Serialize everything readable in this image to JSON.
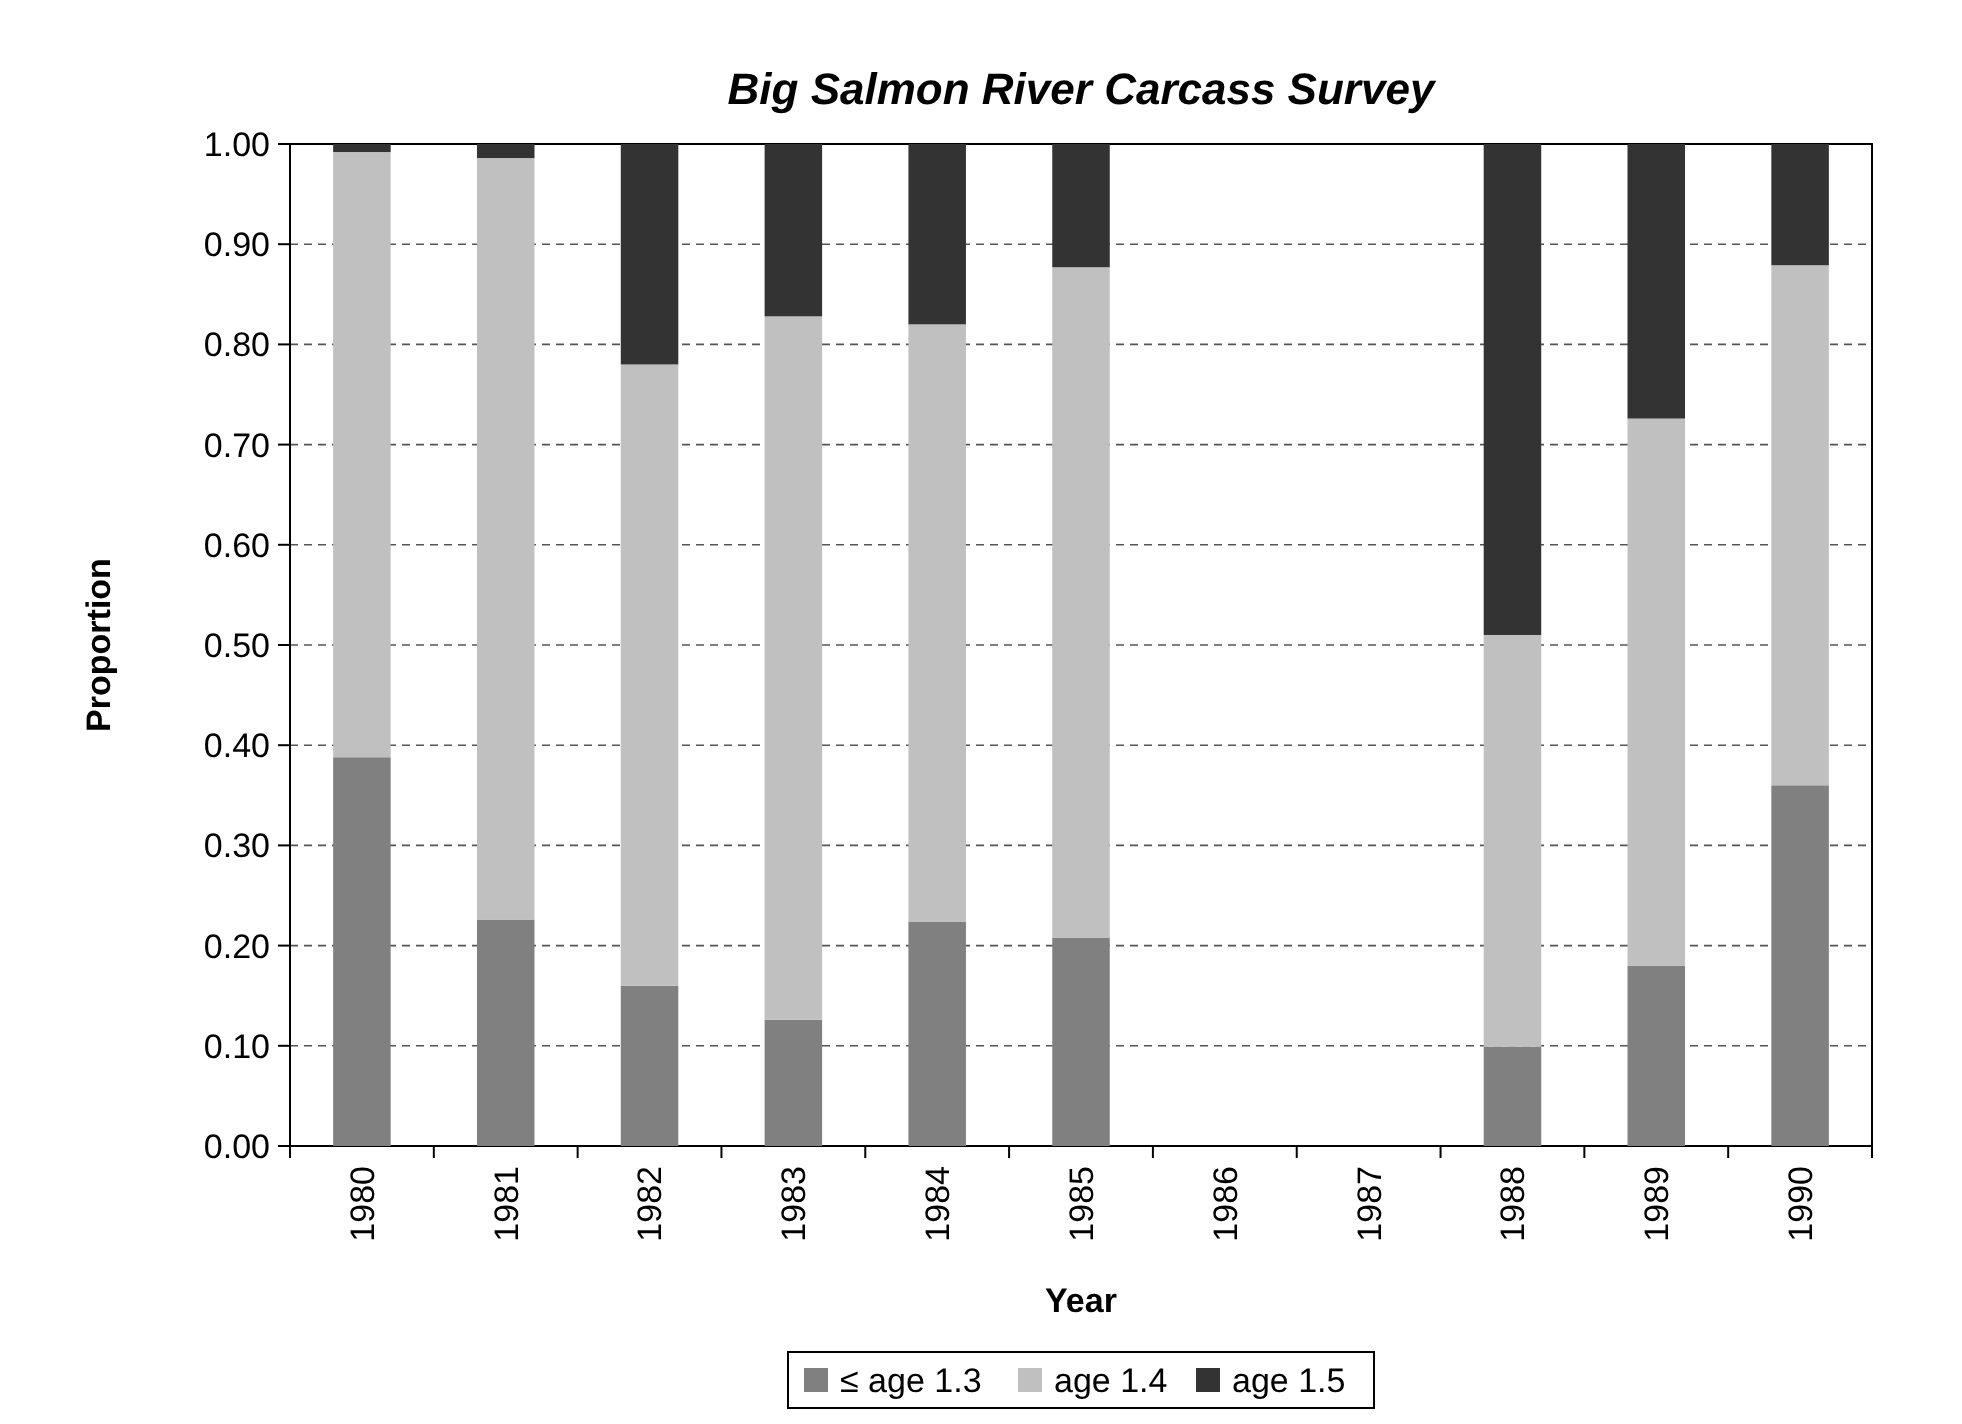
{
  "chart_data": {
    "type": "bar",
    "title": "Big Salmon River Carcass Survey",
    "xlabel": "Year",
    "ylabel": "Proportion",
    "stacked": true,
    "grid": "y",
    "legend": "bottom",
    "categories": [
      "1980",
      "1981",
      "1982",
      "1983",
      "1984",
      "1985",
      "1986",
      "1987",
      "1988",
      "1989",
      "1990"
    ],
    "series": [
      {
        "name": "≤ age 1.3",
        "color": "#808080",
        "values": [
          0.388,
          0.226,
          0.16,
          0.126,
          0.224,
          0.208,
          null,
          null,
          0.099,
          0.18,
          0.36
        ]
      },
      {
        "name": "age 1.4",
        "color": "#c0c0c0",
        "values": [
          0.604,
          0.76,
          0.62,
          0.702,
          0.596,
          0.669,
          null,
          null,
          0.411,
          0.546,
          0.519
        ]
      },
      {
        "name": "age 1.5",
        "color": "#333333",
        "values": [
          0.008,
          0.014,
          0.22,
          0.172,
          0.18,
          0.123,
          null,
          null,
          0.49,
          0.274,
          0.121
        ]
      }
    ],
    "ylim": [
      0,
      1
    ],
    "yticks": [
      {
        "value": 0,
        "label": "0.00"
      },
      {
        "value": 0.1,
        "label": "0.10"
      },
      {
        "value": 0.2,
        "label": "0.20"
      },
      {
        "value": 0.3,
        "label": "0.30"
      },
      {
        "value": 0.4,
        "label": "0.40"
      },
      {
        "value": 0.5,
        "label": "0.50"
      },
      {
        "value": 0.6,
        "label": "0.60"
      },
      {
        "value": 0.7,
        "label": "0.70"
      },
      {
        "value": 0.8,
        "label": "0.80"
      },
      {
        "value": 0.9,
        "label": "0.90"
      },
      {
        "value": 1,
        "label": "1.00"
      }
    ]
  }
}
